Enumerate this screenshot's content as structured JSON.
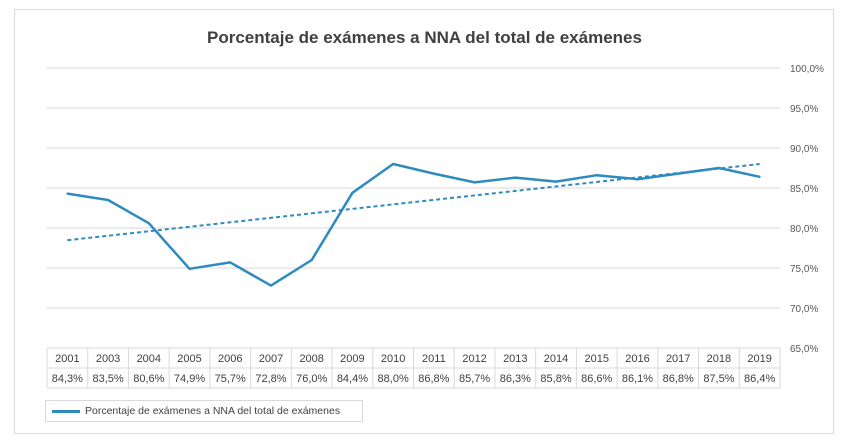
{
  "chart_data": {
    "type": "line",
    "title": "Porcentaje de exámenes a NNA del total de exámenes",
    "categories": [
      "2001",
      "2003",
      "2004",
      "2005",
      "2006",
      "2007",
      "2008",
      "2009",
      "2010",
      "2011",
      "2012",
      "2013",
      "2014",
      "2015",
      "2016",
      "2017",
      "2018",
      "2019"
    ],
    "series": [
      {
        "name": "Porcentaje de exámenes a NNA del total de exámenes",
        "values": [
          84.3,
          83.5,
          80.6,
          74.9,
          75.7,
          72.8,
          76.0,
          84.4,
          88.0,
          86.8,
          85.7,
          86.3,
          85.8,
          86.6,
          86.1,
          86.8,
          87.5,
          86.4
        ],
        "color": "#2e8bc0"
      }
    ],
    "value_labels": [
      "84,3%",
      "83,5%",
      "80,6%",
      "74,9%",
      "75,7%",
      "72,8%",
      "76,0%",
      "84,4%",
      "88,0%",
      "86,8%",
      "85,7%",
      "86,3%",
      "85,8%",
      "86,6%",
      "86,1%",
      "86,8%",
      "87,5%",
      "86,4%"
    ],
    "trendline": {
      "type": "linear",
      "style": "dashed",
      "color": "#2e8bc0"
    },
    "ylim": [
      65,
      100
    ],
    "yticks": [
      "65,0%",
      "70,0%",
      "75,0%",
      "80,0%",
      "85,0%",
      "90,0%",
      "95,0%",
      "100,0%"
    ],
    "y_axis_position": "right",
    "grid": true,
    "data_table": true,
    "legend": "bottom-left"
  }
}
